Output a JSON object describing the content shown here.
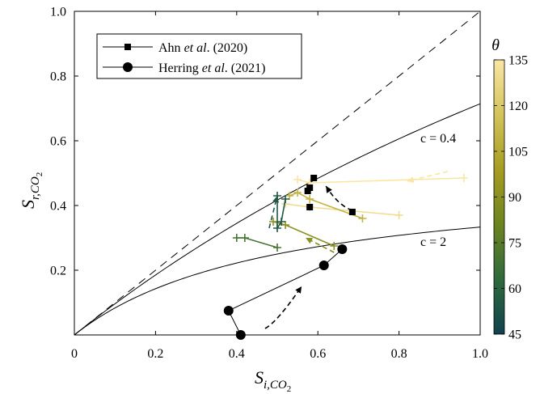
{
  "chart_data": {
    "type": "line",
    "xlabel": {
      "main": "S",
      "sub": "i,CO",
      "subsub": "2"
    },
    "ylabel": {
      "main": "S",
      "sub": "r,CO",
      "subsub": "2"
    },
    "xlim": [
      0,
      1.0
    ],
    "ylim": [
      0,
      1.0
    ],
    "xticks": [
      "0",
      "0.2",
      "0.4",
      "0.6",
      "0.8",
      "1.0"
    ],
    "yticks": [
      "0.2",
      "0.4",
      "0.6",
      "0.8",
      "1.0"
    ],
    "legend": {
      "placement": "top-left",
      "entries": [
        {
          "marker": "square",
          "parts": [
            "Ahn ",
            "et al",
            ". (2020)"
          ]
        },
        {
          "marker": "circle",
          "parts": [
            "Herring ",
            "et al",
            ". (2021)"
          ]
        }
      ]
    },
    "colorbar": {
      "title": "θ",
      "min": 45,
      "max": 135,
      "ticks": [
        "45",
        "60",
        "75",
        "90",
        "105",
        "120",
        "135"
      ],
      "colors": [
        "#10424d",
        "#2f6a3d",
        "#6d8420",
        "#a69c22",
        "#d4c35a",
        "#f9e6a4"
      ]
    },
    "curves": [
      {
        "label": "c = 2",
        "c": 2
      },
      {
        "label": "c = 0.4",
        "c": 0.4
      }
    ],
    "herring": [
      [
        0.41,
        0.0
      ],
      [
        0.38,
        0.075
      ],
      [
        0.615,
        0.215
      ],
      [
        0.66,
        0.265
      ]
    ],
    "ahn": [
      {
        "theta": 135,
        "points": [
          [
            0.96,
            0.485
          ],
          [
            0.58,
            0.47
          ],
          [
            0.55,
            0.48
          ]
        ]
      },
      {
        "theta": 130,
        "points": [
          [
            0.8,
            0.37
          ],
          [
            0.58,
            0.395
          ],
          [
            0.52,
            0.405
          ]
        ]
      },
      {
        "theta": 110,
        "points": [
          [
            0.71,
            0.36
          ],
          [
            0.58,
            0.42
          ],
          [
            0.55,
            0.44
          ],
          [
            0.53,
            0.43
          ]
        ]
      },
      {
        "theta": 90,
        "points": [
          [
            0.64,
            0.275
          ],
          [
            0.52,
            0.34
          ],
          [
            0.49,
            0.35
          ]
        ]
      },
      {
        "theta": 70,
        "points": [
          [
            0.5,
            0.27
          ],
          [
            0.42,
            0.3
          ],
          [
            0.4,
            0.3
          ]
        ]
      },
      {
        "theta": 55,
        "points": [
          [
            0.52,
            0.42
          ],
          [
            0.51,
            0.35
          ],
          [
            0.5,
            0.33
          ],
          [
            0.5,
            0.43
          ]
        ]
      }
    ],
    "ahn_squares": [
      [
        0.59,
        0.485
      ],
      [
        0.58,
        0.455
      ],
      [
        0.575,
        0.445
      ],
      [
        0.58,
        0.395
      ],
      [
        0.685,
        0.38
      ]
    ],
    "arrows": [
      {
        "theta": 135,
        "from": [
          0.92,
          0.505
        ],
        "to": [
          0.82,
          0.475
        ]
      },
      {
        "theta": 90,
        "from": [
          0.64,
          0.255
        ],
        "to": [
          0.57,
          0.3
        ]
      },
      {
        "theta": 55,
        "from": [
          0.48,
          0.33
        ],
        "to": [
          0.5,
          0.43
        ]
      },
      {
        "theta": 0,
        "from": [
          0.685,
          0.385
        ],
        "to": [
          0.62,
          0.46
        ],
        "bend": [
          0.65,
          0.4
        ]
      },
      {
        "theta": 0,
        "from": [
          0.47,
          0.02
        ],
        "to": [
          0.56,
          0.15
        ],
        "bend": [
          0.5,
          0.04
        ]
      }
    ]
  }
}
